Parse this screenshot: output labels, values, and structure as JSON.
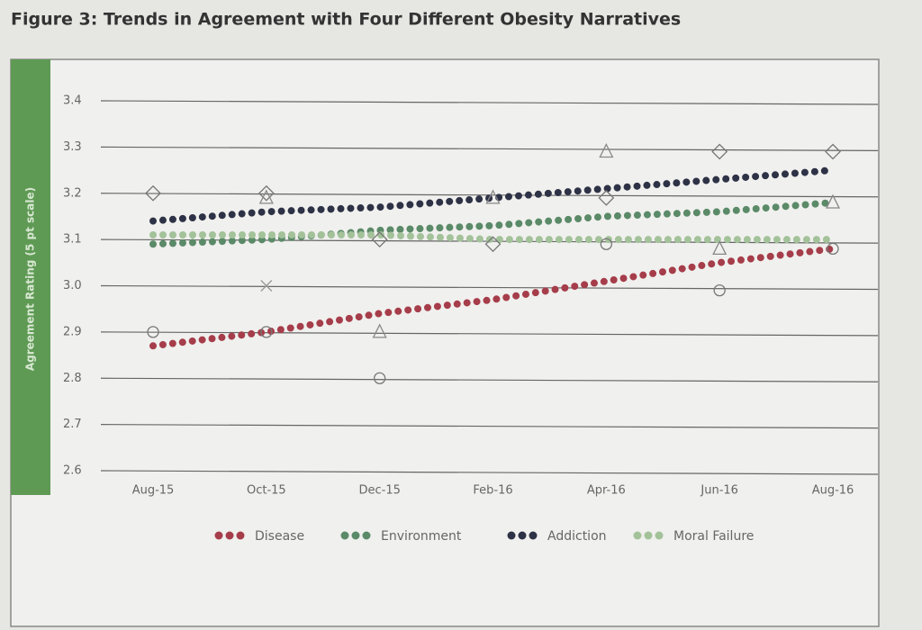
{
  "chart_data": {
    "type": "line",
    "title": "Figure 3: Trends in Agreement with Four Different Obesity Narratives",
    "y_label": "Agreement Rating (5 pt scale)",
    "categories": [
      "Aug-15",
      "Oct-15",
      "Dec-15",
      "Feb-16",
      "Apr-16",
      "Jun-16",
      "Aug-16"
    ],
    "series": [
      {
        "name": "Disease",
        "color": "#a63d4a",
        "values": [
          2.87,
          2.9,
          2.94,
          2.97,
          3.01,
          3.05,
          3.08
        ]
      },
      {
        "name": "Environment",
        "color": "#5b8a68",
        "values": [
          3.09,
          3.1,
          3.12,
          3.13,
          3.15,
          3.16,
          3.18
        ]
      },
      {
        "name": "Addiction",
        "color": "#2e3246",
        "values": [
          3.14,
          3.16,
          3.17,
          3.19,
          3.21,
          3.23,
          3.25
        ]
      },
      {
        "name": "Moral Failure",
        "color": "#a3c29a",
        "values": [
          3.11,
          3.11,
          3.11,
          3.1,
          3.1,
          3.1,
          3.1
        ]
      }
    ],
    "markers": [
      {
        "shape": "circle",
        "values": [
          2.9,
          2.9,
          2.8,
          null,
          3.09,
          2.99,
          3.08
        ]
      },
      {
        "shape": "diamond",
        "values": [
          3.2,
          3.2,
          3.1,
          3.09,
          3.19,
          3.29,
          3.29
        ]
      },
      {
        "shape": "triangle",
        "values": [
          null,
          3.19,
          2.9,
          3.19,
          3.29,
          3.08,
          3.18
        ]
      },
      {
        "shape": "cross",
        "values": [
          null,
          3.0,
          null,
          null,
          null,
          null,
          null
        ]
      }
    ],
    "ylim": [
      2.6,
      3.4
    ],
    "yticks": [
      2.6,
      2.7,
      2.8,
      2.9,
      {
        "value": 3,
        "label": "3.0"
      },
      3.1,
      3.2,
      3.3,
      3.4
    ],
    "grid": true,
    "legend": "bottom"
  }
}
